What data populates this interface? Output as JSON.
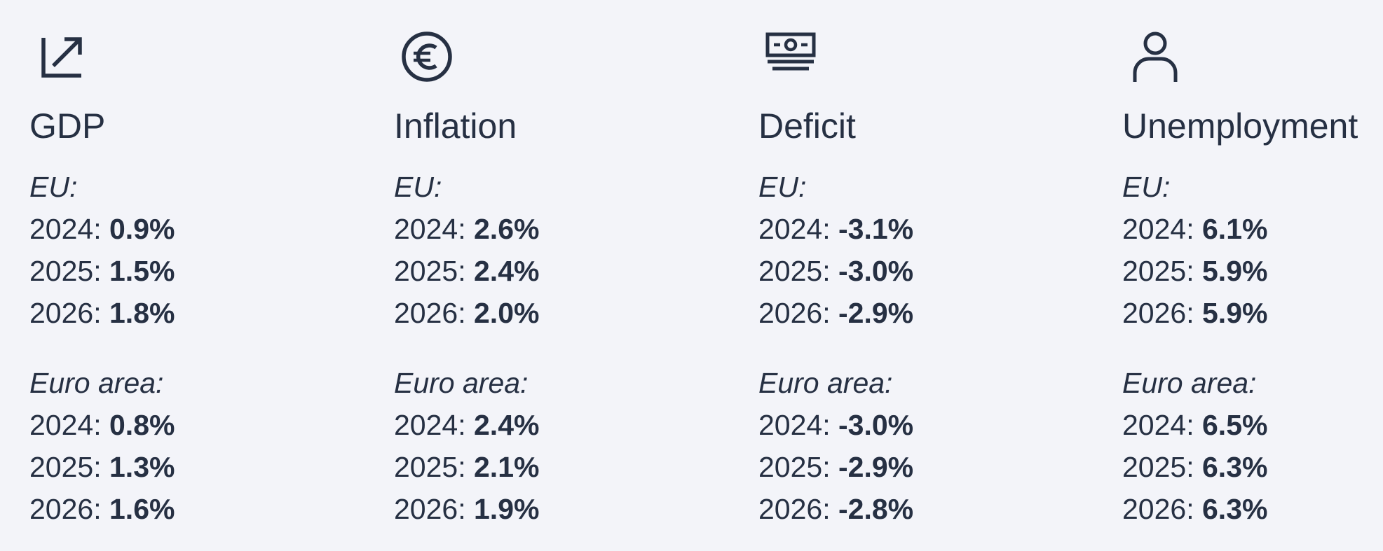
{
  "indicators": [
    {
      "title": "GDP",
      "icon": "trend-arrow-icon",
      "eu": {
        "label": "EU:",
        "rows": [
          {
            "year": "2024: ",
            "value": "0.9%"
          },
          {
            "year": "2025: ",
            "value": "1.5%"
          },
          {
            "year": "2026: ",
            "value": "1.8%"
          }
        ]
      },
      "euro_area": {
        "label": "Euro area:",
        "rows": [
          {
            "year": "2024: ",
            "value": "0.8%"
          },
          {
            "year": "2025: ",
            "value": "1.3%"
          },
          {
            "year": "2026: ",
            "value": "1.6%"
          }
        ]
      }
    },
    {
      "title": "Inflation",
      "icon": "euro-coin-icon",
      "eu": {
        "label": "EU:",
        "rows": [
          {
            "year": "2024: ",
            "value": "2.6%"
          },
          {
            "year": "2025: ",
            "value": "2.4%"
          },
          {
            "year": "2026: ",
            "value": "2.0%"
          }
        ]
      },
      "euro_area": {
        "label": "Euro area:",
        "rows": [
          {
            "year": "2024: ",
            "value": "2.4%"
          },
          {
            "year": "2025: ",
            "value": "2.1%"
          },
          {
            "year": "2026: ",
            "value": "1.9%"
          }
        ]
      }
    },
    {
      "title": "Deficit",
      "icon": "banknote-icon",
      "eu": {
        "label": "EU:",
        "rows": [
          {
            "year": "2024: ",
            "value": "-3.1%"
          },
          {
            "year": "2025: ",
            "value": "-3.0%"
          },
          {
            "year": "2026: ",
            "value": "-2.9%"
          }
        ]
      },
      "euro_area": {
        "label": "Euro area:",
        "rows": [
          {
            "year": "2024: ",
            "value": "-3.0%"
          },
          {
            "year": "2025: ",
            "value": "-2.9%"
          },
          {
            "year": "2026: ",
            "value": "-2.8%"
          }
        ]
      }
    },
    {
      "title": "Unemployment",
      "icon": "person-icon",
      "eu": {
        "label": "EU:",
        "rows": [
          {
            "year": "2024: ",
            "value": "6.1%"
          },
          {
            "year": "2025: ",
            "value": "5.9%"
          },
          {
            "year": "2026: ",
            "value": "5.9%"
          }
        ]
      },
      "euro_area": {
        "label": "Euro area:",
        "rows": [
          {
            "year": "2024: ",
            "value": "6.5%"
          },
          {
            "year": "2025: ",
            "value": "6.3%"
          },
          {
            "year": "2026: ",
            "value": "6.3%"
          }
        ]
      }
    }
  ],
  "colors": {
    "background": "#f3f4f9",
    "text": "#263043"
  }
}
